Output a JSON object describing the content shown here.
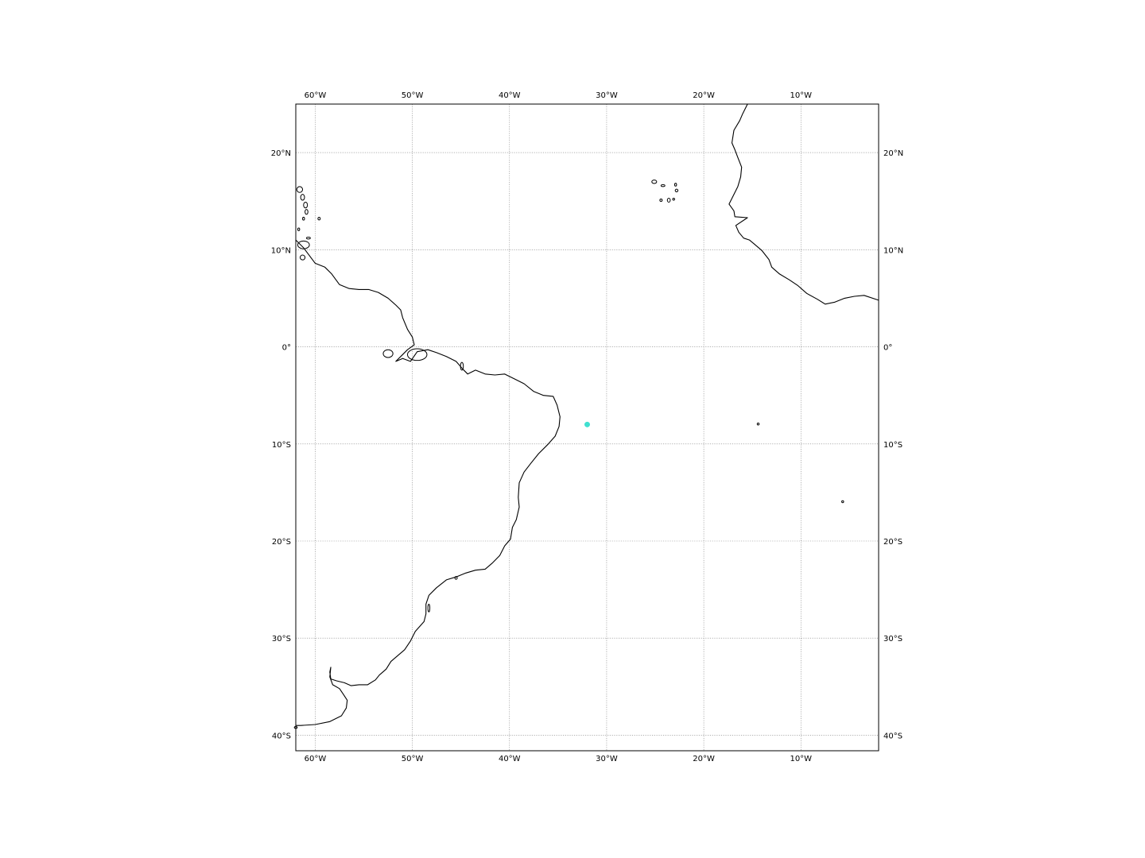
{
  "map": {
    "projection": "plate-carree",
    "extent": {
      "lon_min": -62,
      "lon_max": -2,
      "lat_min": -41.6,
      "lat_max": 25
    },
    "gridlines": true,
    "gridline_style": "dotted",
    "lon_ticks": [
      {
        "value": -60,
        "label": "60°W"
      },
      {
        "value": -50,
        "label": "50°W"
      },
      {
        "value": -40,
        "label": "40°W"
      },
      {
        "value": -30,
        "label": "30°W"
      },
      {
        "value": -20,
        "label": "20°W"
      },
      {
        "value": -10,
        "label": "10°W"
      }
    ],
    "lat_ticks": [
      {
        "value": 20,
        "label": "20°N"
      },
      {
        "value": 10,
        "label": "10°N"
      },
      {
        "value": 0,
        "label": "0°"
      },
      {
        "value": -10,
        "label": "10°S"
      },
      {
        "value": -20,
        "label": "20°S"
      },
      {
        "value": -30,
        "label": "30°S"
      },
      {
        "value": -40,
        "label": "40°S"
      }
    ],
    "marker": {
      "lon": -32.0,
      "lat": -8.0,
      "color": "#40e0d0"
    },
    "colors": {
      "coastline": "#000000",
      "gridline": "#808080",
      "background": "#ffffff"
    },
    "coastlines": {
      "south_america": [
        [
          -62,
          11.0
        ],
        [
          -61.2,
          10.2
        ],
        [
          -60,
          8.6
        ],
        [
          -59,
          8.2
        ],
        [
          -58.3,
          7.5
        ],
        [
          -57.5,
          6.4
        ],
        [
          -56.5,
          6.0
        ],
        [
          -55.5,
          5.9
        ],
        [
          -54.5,
          5.9
        ],
        [
          -53.5,
          5.6
        ],
        [
          -52.5,
          5.0
        ],
        [
          -51.7,
          4.3
        ],
        [
          -51.2,
          3.8
        ],
        [
          -51.0,
          3.0
        ],
        [
          -50.5,
          1.8
        ],
        [
          -50.0,
          1.0
        ],
        [
          -49.8,
          0.2
        ],
        [
          -50.5,
          -0.3
        ],
        [
          -51.0,
          -0.8
        ],
        [
          -51.7,
          -1.5
        ],
        [
          -51.0,
          -1.2
        ],
        [
          -50.2,
          -1.5
        ],
        [
          -49.5,
          -0.5
        ],
        [
          -48.4,
          -0.3
        ],
        [
          -47.5,
          -0.6
        ],
        [
          -46.5,
          -1.0
        ],
        [
          -45.5,
          -1.5
        ],
        [
          -44.8,
          -2.3
        ],
        [
          -44.3,
          -2.8
        ],
        [
          -43.5,
          -2.4
        ],
        [
          -42.5,
          -2.8
        ],
        [
          -41.5,
          -2.9
        ],
        [
          -40.5,
          -2.8
        ],
        [
          -39.5,
          -3.3
        ],
        [
          -38.5,
          -3.8
        ],
        [
          -37.5,
          -4.6
        ],
        [
          -36.5,
          -5.0
        ],
        [
          -35.5,
          -5.1
        ],
        [
          -35.1,
          -6.0
        ],
        [
          -34.8,
          -7.2
        ],
        [
          -34.9,
          -8.2
        ],
        [
          -35.3,
          -9.2
        ],
        [
          -36.0,
          -10.0
        ],
        [
          -37.0,
          -11.0
        ],
        [
          -37.8,
          -12.0
        ],
        [
          -38.5,
          -12.9
        ],
        [
          -39.0,
          -14.0
        ],
        [
          -39.1,
          -15.5
        ],
        [
          -39.0,
          -16.5
        ],
        [
          -39.3,
          -17.8
        ],
        [
          -39.7,
          -18.6
        ],
        [
          -39.9,
          -19.8
        ],
        [
          -40.5,
          -20.5
        ],
        [
          -41.0,
          -21.5
        ],
        [
          -41.8,
          -22.3
        ],
        [
          -42.5,
          -22.9
        ],
        [
          -43.5,
          -23.0
        ],
        [
          -44.5,
          -23.3
        ],
        [
          -45.5,
          -23.7
        ],
        [
          -46.5,
          -24.0
        ],
        [
          -47.5,
          -24.8
        ],
        [
          -48.3,
          -25.6
        ],
        [
          -48.6,
          -26.5
        ],
        [
          -48.6,
          -27.5
        ],
        [
          -48.8,
          -28.3
        ],
        [
          -49.7,
          -29.3
        ],
        [
          -50.2,
          -30.3
        ],
        [
          -50.8,
          -31.2
        ],
        [
          -51.5,
          -31.8
        ],
        [
          -52.2,
          -32.4
        ],
        [
          -52.7,
          -33.2
        ],
        [
          -53.4,
          -33.8
        ],
        [
          -53.8,
          -34.3
        ],
        [
          -54.6,
          -34.8
        ],
        [
          -55.5,
          -34.8
        ],
        [
          -56.3,
          -34.9
        ],
        [
          -57.0,
          -34.6
        ],
        [
          -57.8,
          -34.4
        ],
        [
          -58.4,
          -34.2
        ],
        [
          -58.5,
          -33.5
        ],
        [
          -58.4,
          -33.0
        ],
        [
          -58.5,
          -34.0
        ],
        [
          -58.2,
          -34.8
        ],
        [
          -57.5,
          -35.2
        ],
        [
          -57.1,
          -35.8
        ],
        [
          -56.7,
          -36.4
        ],
        [
          -56.8,
          -37.2
        ],
        [
          -57.3,
          -38.0
        ],
        [
          -58.5,
          -38.6
        ],
        [
          -60.0,
          -38.9
        ],
        [
          -61.5,
          -39.0
        ],
        [
          -62.0,
          -39.0
        ]
      ],
      "africa": [
        [
          -15.5,
          25.0
        ],
        [
          -16.0,
          24.0
        ],
        [
          -16.3,
          23.3
        ],
        [
          -16.9,
          22.3
        ],
        [
          -17.1,
          21.0
        ],
        [
          -16.8,
          20.3
        ],
        [
          -16.5,
          19.5
        ],
        [
          -16.1,
          18.5
        ],
        [
          -16.2,
          17.5
        ],
        [
          -16.5,
          16.5
        ],
        [
          -17.0,
          15.5
        ],
        [
          -17.4,
          14.7
        ],
        [
          -16.9,
          14.0
        ],
        [
          -16.8,
          13.4
        ],
        [
          -15.5,
          13.3
        ],
        [
          -16.7,
          12.5
        ],
        [
          -16.4,
          11.8
        ],
        [
          -15.9,
          11.2
        ],
        [
          -15.3,
          11.0
        ],
        [
          -14.7,
          10.5
        ],
        [
          -14.0,
          9.9
        ],
        [
          -13.3,
          9.0
        ],
        [
          -13.0,
          8.2
        ],
        [
          -12.2,
          7.5
        ],
        [
          -11.2,
          6.9
        ],
        [
          -10.3,
          6.3
        ],
        [
          -9.4,
          5.5
        ],
        [
          -8.3,
          4.9
        ],
        [
          -7.5,
          4.4
        ],
        [
          -6.5,
          4.6
        ],
        [
          -5.5,
          5.0
        ],
        [
          -4.5,
          5.2
        ],
        [
          -3.5,
          5.3
        ],
        [
          -2.0,
          4.8
        ]
      ],
      "islands": [
        {
          "lon": -61.6,
          "lat": 16.2,
          "rx": 0.3,
          "ry": 0.3
        },
        {
          "lon": -61.3,
          "lat": 15.4,
          "rx": 0.2,
          "ry": 0.3
        },
        {
          "lon": -61.0,
          "lat": 14.6,
          "rx": 0.2,
          "ry": 0.3
        },
        {
          "lon": -60.9,
          "lat": 13.9,
          "rx": 0.15,
          "ry": 0.25
        },
        {
          "lon": -61.2,
          "lat": 13.2,
          "rx": 0.1,
          "ry": 0.15
        },
        {
          "lon": -59.6,
          "lat": 13.2,
          "rx": 0.12,
          "ry": 0.14
        },
        {
          "lon": -61.7,
          "lat": 12.1,
          "rx": 0.1,
          "ry": 0.14
        },
        {
          "lon": -61.2,
          "lat": 10.5,
          "rx": 0.6,
          "ry": 0.4
        },
        {
          "lon": -60.7,
          "lat": 11.2,
          "rx": 0.2,
          "ry": 0.1
        },
        {
          "lon": -61.3,
          "lat": 9.2,
          "rx": 0.25,
          "ry": 0.25
        },
        {
          "lon": -25.1,
          "lat": 17.0,
          "rx": 0.25,
          "ry": 0.18
        },
        {
          "lon": -24.2,
          "lat": 16.6,
          "rx": 0.2,
          "ry": 0.1
        },
        {
          "lon": -22.9,
          "lat": 16.7,
          "rx": 0.1,
          "ry": 0.15
        },
        {
          "lon": -22.8,
          "lat": 16.1,
          "rx": 0.14,
          "ry": 0.14
        },
        {
          "lon": -24.4,
          "lat": 15.1,
          "rx": 0.12,
          "ry": 0.12
        },
        {
          "lon": -23.6,
          "lat": 15.1,
          "rx": 0.15,
          "ry": 0.2
        },
        {
          "lon": -23.1,
          "lat": 15.2,
          "rx": 0.1,
          "ry": 0.1
        },
        {
          "lon": -52.5,
          "lat": -0.7,
          "rx": 0.5,
          "ry": 0.4
        },
        {
          "lon": -49.5,
          "lat": -0.8,
          "rx": 1.0,
          "ry": 0.6
        },
        {
          "lon": -44.9,
          "lat": -2.0,
          "rx": 0.15,
          "ry": 0.4
        },
        {
          "lon": -14.4,
          "lat": -7.95,
          "rx": 0.1,
          "ry": 0.1
        },
        {
          "lon": -5.7,
          "lat": -15.95,
          "rx": 0.1,
          "ry": 0.1
        },
        {
          "lon": -48.3,
          "lat": -26.9,
          "rx": 0.1,
          "ry": 0.4
        },
        {
          "lon": -45.5,
          "lat": -23.8,
          "rx": 0.12,
          "ry": 0.15
        },
        {
          "lon": -62.0,
          "lat": -39.2,
          "rx": 0.15,
          "ry": 0.1
        }
      ]
    }
  }
}
